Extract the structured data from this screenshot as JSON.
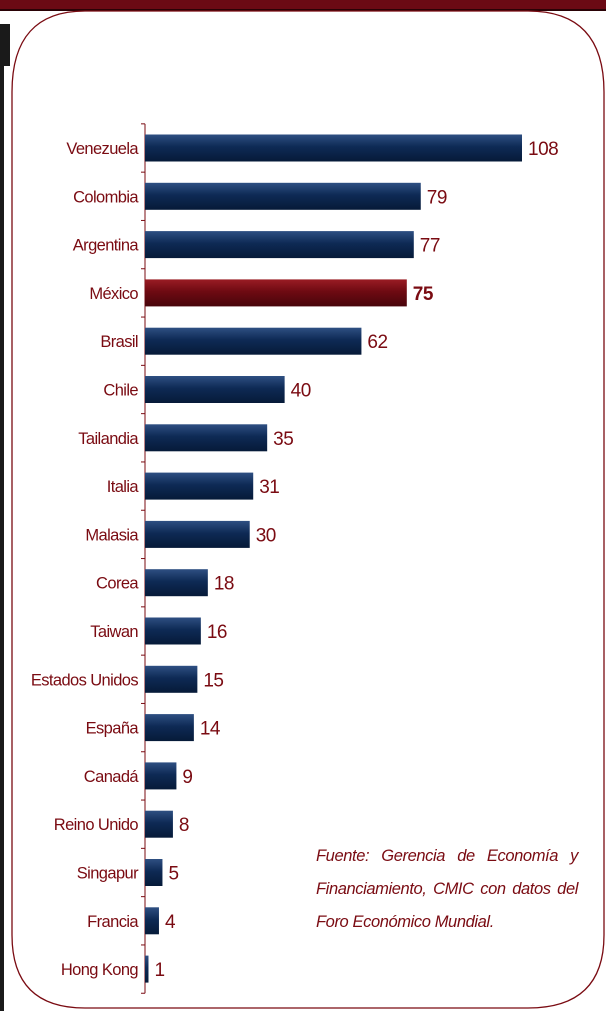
{
  "chart_data": {
    "type": "bar",
    "orientation": "horizontal",
    "categories": [
      "Venezuela",
      "Colombia",
      "Argentina",
      "México",
      "Brasil",
      "Chile",
      "Tailandia",
      "Italia",
      "Malasia",
      "Corea",
      "Taiwan",
      "Estados Unidos",
      "España",
      "Canadá",
      "Reino Unido",
      "Singapur",
      "Francia",
      "Hong Kong"
    ],
    "values": [
      108,
      79,
      77,
      75,
      62,
      40,
      35,
      31,
      30,
      18,
      16,
      15,
      14,
      9,
      8,
      5,
      4,
      1
    ],
    "highlight": "México",
    "xlim": [
      0,
      108
    ],
    "grid": false,
    "colors": {
      "bar": "#0e2a55",
      "highlight": "#7a0b12",
      "label": "#7a0b12",
      "frame": "#7a0b12"
    }
  },
  "source_note": "Fuente: Gerencia de Economía y Financiamiento, CMIC con datos del Foro Económico Mundial."
}
